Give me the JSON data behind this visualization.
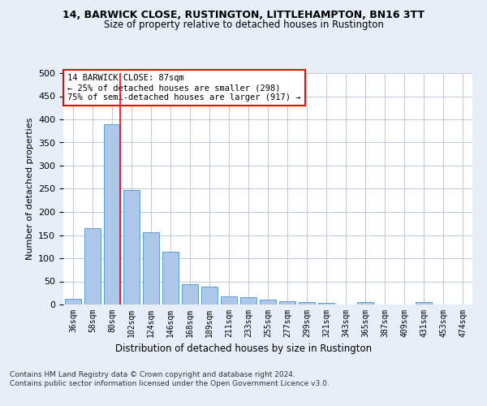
{
  "title1": "14, BARWICK CLOSE, RUSTINGTON, LITTLEHAMPTON, BN16 3TT",
  "title2": "Size of property relative to detached houses in Rustington",
  "xlabel": "Distribution of detached houses by size in Rustington",
  "ylabel": "Number of detached properties",
  "categories": [
    "36sqm",
    "58sqm",
    "80sqm",
    "102sqm",
    "124sqm",
    "146sqm",
    "168sqm",
    "189sqm",
    "211sqm",
    "233sqm",
    "255sqm",
    "277sqm",
    "299sqm",
    "321sqm",
    "343sqm",
    "365sqm",
    "387sqm",
    "409sqm",
    "431sqm",
    "453sqm",
    "474sqm"
  ],
  "values": [
    13,
    165,
    390,
    248,
    157,
    114,
    43,
    39,
    18,
    15,
    10,
    7,
    6,
    4,
    0,
    5,
    0,
    0,
    5,
    0,
    0
  ],
  "bar_color": "#aec6e8",
  "bar_edge_color": "#5a9fd4",
  "vline_x": 2.42,
  "vline_color": "red",
  "annotation_text": "14 BARWICK CLOSE: 87sqm\n← 25% of detached houses are smaller (298)\n75% of semi-detached houses are larger (917) →",
  "annotation_box_color": "white",
  "annotation_box_edge": "red",
  "ylim": [
    0,
    500
  ],
  "yticks": [
    0,
    50,
    100,
    150,
    200,
    250,
    300,
    350,
    400,
    450,
    500
  ],
  "footer": "Contains HM Land Registry data © Crown copyright and database right 2024.\nContains public sector information licensed under the Open Government Licence v3.0.",
  "bg_color": "#e8eef8",
  "plot_bg_color": "white",
  "grid_color": "#c0c8d8"
}
